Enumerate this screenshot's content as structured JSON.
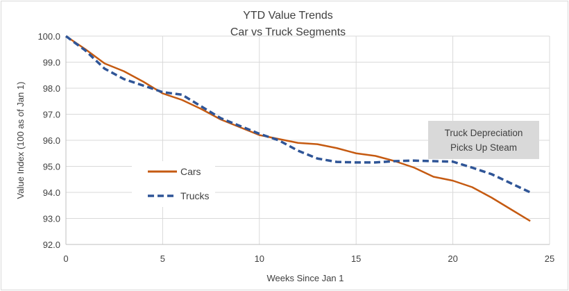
{
  "chart_data": {
    "type": "line",
    "title": "YTD Value Trends",
    "subtitle": "Car vs Truck Segments",
    "xlabel": "Weeks Since Jan 1",
    "ylabel": "Value Index (100 as of Jan 1)",
    "xlim": [
      0,
      25
    ],
    "ylim": [
      92.0,
      100.0
    ],
    "xticks": [
      "0",
      "5",
      "10",
      "15",
      "20",
      "25"
    ],
    "yticks": [
      "92.0",
      "93.0",
      "94.0",
      "95.0",
      "96.0",
      "97.0",
      "98.0",
      "99.0",
      "100.0"
    ],
    "grid": true,
    "legend_placement": "center-left",
    "x": [
      0,
      1,
      2,
      3,
      4,
      5,
      6,
      7,
      8,
      9,
      10,
      11,
      12,
      13,
      14,
      15,
      16,
      17,
      18,
      19,
      20,
      21,
      22,
      23,
      24
    ],
    "series": [
      {
        "name": "Cars",
        "color": "#c55a11",
        "style": "solid",
        "values": [
          100.0,
          99.5,
          98.95,
          98.65,
          98.25,
          97.8,
          97.55,
          97.2,
          96.8,
          96.5,
          96.2,
          96.05,
          95.9,
          95.85,
          95.7,
          95.5,
          95.4,
          95.2,
          94.95,
          94.6,
          94.45,
          94.2,
          93.8,
          93.35,
          92.9
        ]
      },
      {
        "name": "Trucks",
        "color": "#2f5597",
        "style": "dashed",
        "values": [
          100.0,
          99.45,
          98.75,
          98.35,
          98.1,
          97.85,
          97.75,
          97.3,
          96.85,
          96.55,
          96.25,
          96.0,
          95.6,
          95.3,
          95.17,
          95.15,
          95.15,
          95.2,
          95.22,
          95.2,
          95.18,
          94.95,
          94.7,
          94.35,
          94.0
        ]
      }
    ],
    "annotation": {
      "line1": "Truck Depreciation",
      "line2": "Picks Up Steam",
      "background": "#d9d9d9"
    }
  }
}
